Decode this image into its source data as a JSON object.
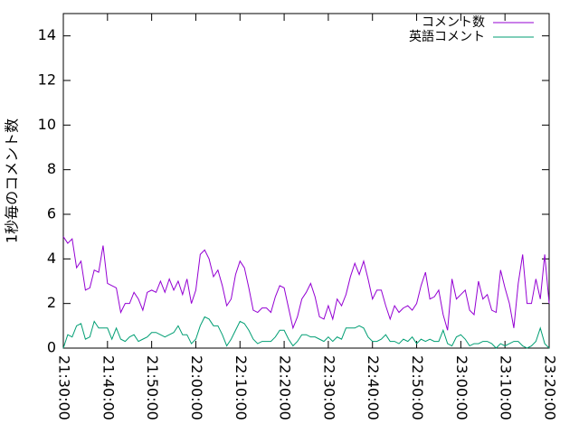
{
  "chart_data": {
    "type": "line",
    "ylabel": "1秒毎のコメント数",
    "x": [
      "21:30:00",
      "21:31:00",
      "21:32:00",
      "21:33:00",
      "21:34:00",
      "21:35:00",
      "21:36:00",
      "21:37:00",
      "21:38:00",
      "21:39:00",
      "21:40:00",
      "21:41:00",
      "21:42:00",
      "21:43:00",
      "21:44:00",
      "21:45:00",
      "21:46:00",
      "21:47:00",
      "21:48:00",
      "21:49:00",
      "21:50:00",
      "21:51:00",
      "21:52:00",
      "21:53:00",
      "21:54:00",
      "21:55:00",
      "21:56:00",
      "21:57:00",
      "21:58:00",
      "21:59:00",
      "22:00:00",
      "22:01:00",
      "22:02:00",
      "22:03:00",
      "22:04:00",
      "22:05:00",
      "22:06:00",
      "22:07:00",
      "22:08:00",
      "22:09:00",
      "22:10:00",
      "22:11:00",
      "22:12:00",
      "22:13:00",
      "22:14:00",
      "22:15:00",
      "22:16:00",
      "22:17:00",
      "22:18:00",
      "22:19:00",
      "22:20:00",
      "22:21:00",
      "22:22:00",
      "22:23:00",
      "22:24:00",
      "22:25:00",
      "22:26:00",
      "22:27:00",
      "22:28:00",
      "22:29:00",
      "22:30:00",
      "22:31:00",
      "22:32:00",
      "22:33:00",
      "22:34:00",
      "22:35:00",
      "22:36:00",
      "22:37:00",
      "22:38:00",
      "22:39:00",
      "22:40:00",
      "22:41:00",
      "22:42:00",
      "22:43:00",
      "22:44:00",
      "22:45:00",
      "22:46:00",
      "22:47:00",
      "22:48:00",
      "22:49:00",
      "22:50:00",
      "22:51:00",
      "22:52:00",
      "22:53:00",
      "22:54:00",
      "22:55:00",
      "22:56:00",
      "22:57:00",
      "22:58:00",
      "22:59:00",
      "23:00:00",
      "23:01:00",
      "23:02:00",
      "23:03:00",
      "23:04:00",
      "23:05:00",
      "23:06:00",
      "23:07:00",
      "23:08:00",
      "23:09:00",
      "23:10:00",
      "23:11:00",
      "23:12:00",
      "23:13:00",
      "23:14:00",
      "23:15:00",
      "23:16:00",
      "23:17:00",
      "23:18:00",
      "23:19:00",
      "23:20:00"
    ],
    "series": [
      {
        "name": "コメント数",
        "color": "#9400d3",
        "values": [
          5.0,
          4.7,
          4.9,
          3.6,
          3.9,
          2.6,
          2.7,
          3.5,
          3.4,
          4.6,
          2.9,
          2.8,
          2.7,
          1.6,
          2.0,
          2.0,
          2.5,
          2.2,
          1.7,
          2.5,
          2.6,
          2.5,
          3.0,
          2.5,
          3.1,
          2.6,
          3.0,
          2.4,
          3.1,
          2.0,
          2.6,
          4.2,
          4.4,
          4.0,
          3.2,
          3.5,
          2.8,
          1.9,
          2.2,
          3.3,
          3.9,
          3.6,
          2.7,
          1.7,
          1.6,
          1.8,
          1.8,
          1.6,
          2.3,
          2.8,
          2.7,
          1.8,
          0.9,
          1.4,
          2.2,
          2.5,
          2.9,
          2.3,
          1.4,
          1.3,
          1.9,
          1.3,
          2.2,
          1.9,
          2.4,
          3.2,
          3.8,
          3.3,
          3.9,
          3.1,
          2.2,
          2.6,
          2.6,
          1.9,
          1.3,
          1.9,
          1.6,
          1.8,
          1.9,
          1.7,
          2.0,
          2.8,
          3.4,
          2.2,
          2.3,
          2.6,
          1.5,
          0.8,
          3.1,
          2.2,
          2.4,
          2.6,
          1.7,
          1.5,
          3.0,
          2.2,
          2.4,
          1.7,
          1.6,
          3.5,
          2.7,
          2.0,
          0.9,
          2.9,
          4.2,
          2.0,
          2.0,
          3.1,
          2.2,
          4.2,
          2.0
        ]
      },
      {
        "name": "英語コメント",
        "color": "#009e73",
        "values": [
          0.0,
          0.6,
          0.5,
          1.0,
          1.1,
          0.4,
          0.5,
          1.2,
          0.9,
          0.9,
          0.9,
          0.4,
          0.9,
          0.4,
          0.3,
          0.5,
          0.6,
          0.3,
          0.4,
          0.5,
          0.7,
          0.7,
          0.6,
          0.5,
          0.6,
          0.7,
          1.0,
          0.6,
          0.6,
          0.2,
          0.4,
          1.0,
          1.4,
          1.3,
          1.0,
          1.0,
          0.6,
          0.1,
          0.4,
          0.8,
          1.2,
          1.1,
          0.8,
          0.4,
          0.2,
          0.3,
          0.3,
          0.3,
          0.5,
          0.8,
          0.8,
          0.4,
          0.1,
          0.3,
          0.6,
          0.6,
          0.5,
          0.5,
          0.4,
          0.3,
          0.5,
          0.3,
          0.5,
          0.4,
          0.9,
          0.9,
          0.9,
          1.0,
          0.9,
          0.5,
          0.3,
          0.3,
          0.4,
          0.6,
          0.3,
          0.3,
          0.2,
          0.4,
          0.3,
          0.5,
          0.2,
          0.4,
          0.3,
          0.4,
          0.3,
          0.3,
          0.8,
          0.2,
          0.1,
          0.5,
          0.6,
          0.4,
          0.1,
          0.2,
          0.2,
          0.3,
          0.3,
          0.2,
          0.0,
          0.2,
          0.1,
          0.2,
          0.3,
          0.3,
          0.1,
          0.0,
          0.1,
          0.3,
          0.9,
          0.2,
          0.0
        ]
      }
    ],
    "xlim": [
      "21:30:00",
      "23:20:00"
    ],
    "xticks": [
      "21:30:00",
      "21:40:00",
      "21:50:00",
      "22:00:00",
      "22:10:00",
      "22:20:00",
      "22:30:00",
      "22:40:00",
      "22:50:00",
      "23:00:00",
      "23:10:00",
      "23:20:00"
    ],
    "ylim": [
      0,
      15
    ],
    "yticks": [
      0,
      2,
      4,
      6,
      8,
      10,
      12,
      14
    ],
    "grid": false,
    "legend": "top-right"
  }
}
